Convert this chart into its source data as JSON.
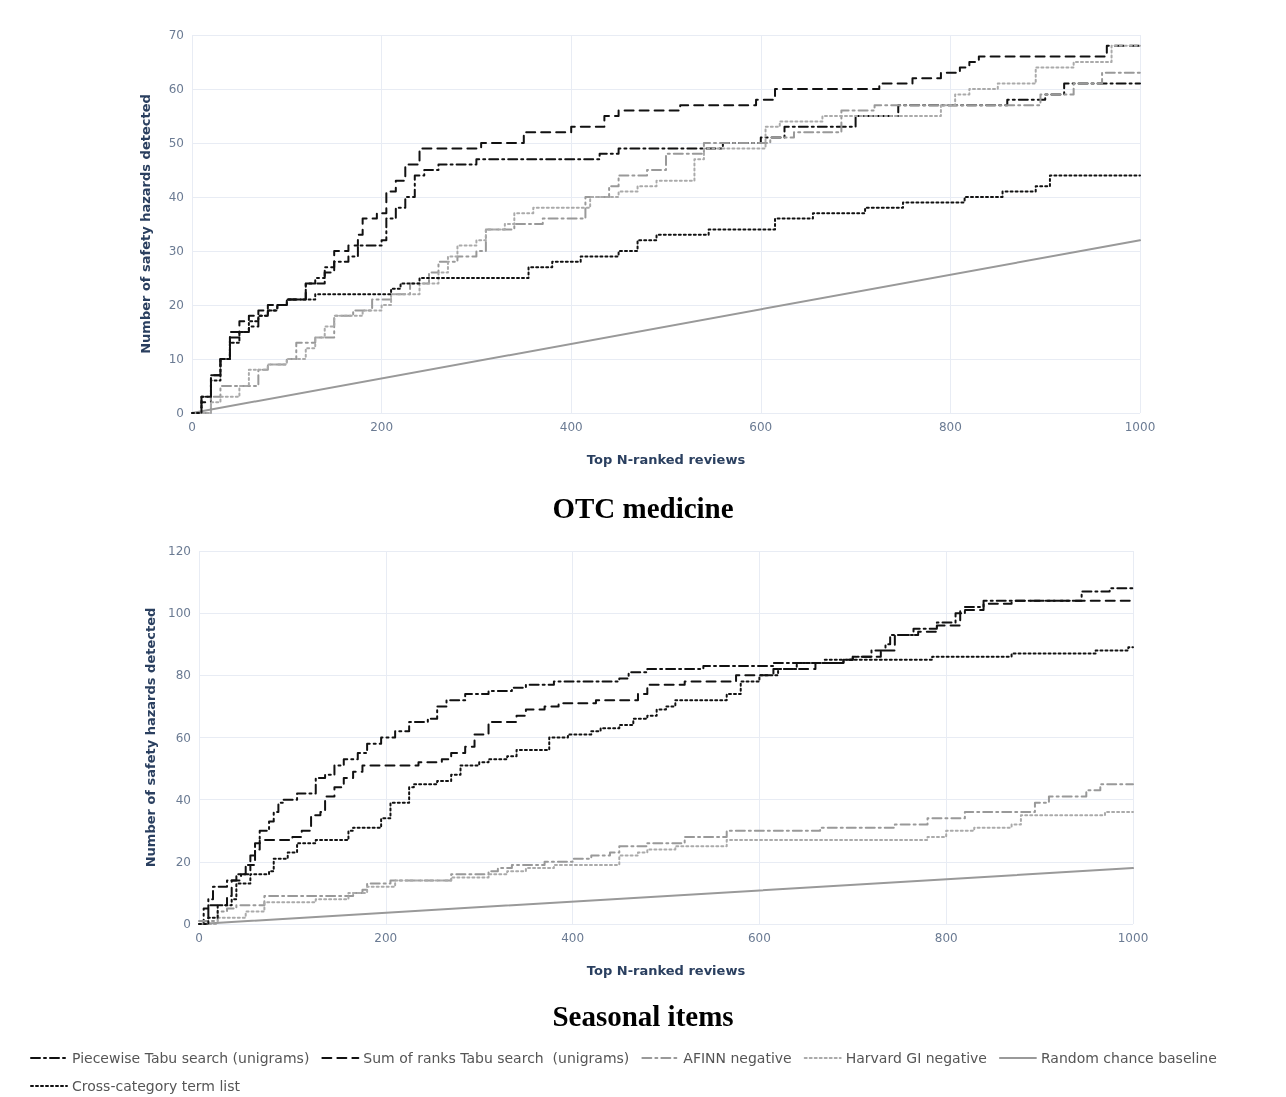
{
  "chart_data": [
    {
      "type": "step",
      "title": "OTC medicine",
      "xlabel": "Top N-ranked reviews",
      "ylabel": "Number of safety hazards detected",
      "xlim": [
        0,
        1000
      ],
      "xticks": [
        0,
        200,
        400,
        600,
        800,
        1000
      ],
      "ylim": [
        0,
        70
      ],
      "yticks": [
        0,
        10,
        20,
        30,
        40,
        50,
        60,
        70
      ],
      "grid": true,
      "legend": false,
      "marker": "none",
      "series": [
        {
          "color": "#111111",
          "line_style": "dashdot",
          "x": [
            0,
            10,
            20,
            30,
            40,
            50,
            60,
            70,
            80,
            90,
            100,
            120,
            130,
            140,
            150,
            165,
            175,
            200,
            205,
            215,
            225,
            235,
            245,
            260,
            300,
            430,
            450,
            560,
            600,
            625,
            700,
            745,
            860,
            900,
            920,
            1000
          ],
          "values": [
            0,
            3,
            7,
            10,
            14,
            15,
            16,
            18,
            19,
            20,
            21,
            24,
            25,
            27,
            28,
            29,
            31,
            32,
            36,
            38,
            40,
            44,
            45,
            46,
            47,
            48,
            49,
            50,
            51,
            53,
            55,
            57,
            58,
            59,
            61,
            61
          ]
        },
        {
          "color": "#111111",
          "line_style": "dashed",
          "x": [
            0,
            10,
            20,
            30,
            40,
            50,
            60,
            70,
            80,
            100,
            120,
            140,
            150,
            165,
            175,
            180,
            195,
            205,
            215,
            225,
            240,
            305,
            350,
            400,
            435,
            450,
            515,
            595,
            615,
            725,
            760,
            790,
            810,
            820,
            830,
            965,
            1000
          ],
          "values": [
            0,
            2,
            7,
            10,
            15,
            17,
            18,
            19,
            20,
            21,
            24,
            26,
            30,
            31,
            33,
            36,
            37,
            41,
            43,
            46,
            49,
            50,
            52,
            53,
            55,
            56,
            57,
            58,
            60,
            61,
            62,
            63,
            64,
            65,
            66,
            68,
            68
          ]
        },
        {
          "color": "#999999",
          "line_style": "dashdot",
          "x": [
            0,
            20,
            30,
            70,
            80,
            100,
            110,
            130,
            150,
            170,
            190,
            210,
            230,
            250,
            260,
            280,
            300,
            310,
            340,
            370,
            415,
            440,
            450,
            480,
            500,
            540,
            610,
            635,
            685,
            720,
            895,
            930,
            960,
            1000
          ],
          "values": [
            0,
            3,
            5,
            8,
            9,
            10,
            13,
            14,
            18,
            19,
            21,
            22,
            24,
            26,
            28,
            29,
            30,
            34,
            35,
            36,
            40,
            42,
            44,
            45,
            48,
            50,
            51,
            52,
            56,
            57,
            59,
            61,
            63,
            63
          ]
        },
        {
          "color": "#aaaaaa",
          "line_style": "dotted",
          "x": [
            0,
            20,
            30,
            50,
            60,
            80,
            100,
            120,
            130,
            140,
            150,
            180,
            200,
            210,
            240,
            260,
            270,
            280,
            300,
            310,
            330,
            340,
            360,
            420,
            450,
            470,
            490,
            530,
            540,
            605,
            620,
            665,
            790,
            805,
            820,
            850,
            890,
            930,
            970,
            1000
          ],
          "values": [
            0,
            2,
            3,
            5,
            8,
            9,
            10,
            12,
            14,
            16,
            18,
            19,
            20,
            22,
            24,
            26,
            29,
            31,
            32,
            34,
            35,
            37,
            38,
            40,
            41,
            42,
            43,
            47,
            49,
            53,
            54,
            55,
            57,
            59,
            60,
            61,
            64,
            65,
            68,
            68
          ]
        },
        {
          "type": "line",
          "color": "#999999",
          "line_style": "solid",
          "x": [
            0,
            1000
          ],
          "values": [
            0,
            32
          ]
        },
        {
          "color": "#111111",
          "line_style": "dotted",
          "x": [
            0,
            10,
            20,
            30,
            40,
            50,
            60,
            70,
            80,
            90,
            100,
            130,
            210,
            220,
            240,
            355,
            380,
            410,
            450,
            470,
            490,
            545,
            615,
            655,
            710,
            750,
            815,
            855,
            890,
            905,
            1000
          ],
          "values": [
            0,
            3,
            6,
            10,
            13,
            15,
            17,
            18,
            19,
            20,
            21,
            22,
            23,
            24,
            25,
            27,
            28,
            29,
            30,
            32,
            33,
            34,
            36,
            37,
            38,
            39,
            40,
            41,
            42,
            44,
            44
          ]
        }
      ]
    },
    {
      "type": "step",
      "title": "Seasonal items",
      "xlabel": "Top N-ranked reviews",
      "ylabel": "Number of safety hazards detected",
      "xlim": [
        0,
        1000
      ],
      "xticks": [
        0,
        200,
        400,
        600,
        800,
        1000
      ],
      "ylim": [
        0,
        120
      ],
      "yticks": [
        0,
        20,
        40,
        60,
        80,
        100,
        120
      ],
      "grid": true,
      "legend": "bottom",
      "marker": "none",
      "series": [
        {
          "name": "Piecewise Tabu search (unigrams)",
          "color": "#111111",
          "line_style": "dashdot",
          "x": [
            0,
            5,
            10,
            15,
            30,
            40,
            50,
            55,
            60,
            65,
            75,
            80,
            85,
            90,
            105,
            125,
            135,
            145,
            155,
            170,
            180,
            195,
            210,
            225,
            245,
            255,
            265,
            285,
            310,
            335,
            350,
            380,
            450,
            460,
            480,
            540,
            615,
            690,
            700,
            720,
            735,
            740,
            765,
            790,
            810,
            820,
            840,
            945,
            975,
            1000
          ],
          "values": [
            0,
            5,
            8,
            12,
            14,
            16,
            19,
            22,
            26,
            30,
            33,
            36,
            39,
            40,
            42,
            47,
            48,
            51,
            53,
            55,
            58,
            60,
            62,
            65,
            66,
            70,
            72,
            74,
            75,
            76,
            77,
            78,
            79,
            81,
            82,
            83,
            84,
            85,
            86,
            88,
            90,
            93,
            95,
            97,
            100,
            102,
            104,
            107,
            108,
            108
          ]
        },
        {
          "name": "Sum of ranks Tabu search  (unigrams)",
          "color": "#111111",
          "line_style": "dashed",
          "x": [
            0,
            10,
            30,
            35,
            45,
            55,
            60,
            65,
            100,
            110,
            120,
            130,
            135,
            145,
            155,
            165,
            175,
            235,
            260,
            270,
            285,
            295,
            310,
            340,
            350,
            370,
            385,
            425,
            470,
            480,
            520,
            575,
            615,
            660,
            690,
            700,
            730,
            745,
            770,
            790,
            815,
            840,
            870,
            1000
          ],
          "values": [
            0,
            6,
            9,
            14,
            16,
            19,
            24,
            27,
            28,
            30,
            35,
            36,
            41,
            44,
            47,
            49,
            51,
            52,
            53,
            55,
            57,
            61,
            65,
            67,
            69,
            70,
            71,
            72,
            74,
            77,
            78,
            80,
            82,
            84,
            85,
            86,
            88,
            93,
            94,
            96,
            101,
            103,
            104,
            104
          ]
        },
        {
          "name": "AFINN negative",
          "color": "#999999",
          "line_style": "dashdot",
          "x": [
            0,
            20,
            30,
            40,
            70,
            165,
            175,
            180,
            205,
            270,
            310,
            320,
            335,
            370,
            400,
            420,
            440,
            450,
            480,
            520,
            565,
            665,
            745,
            780,
            820,
            895,
            910,
            950,
            965,
            1000
          ],
          "values": [
            1,
            4,
            5,
            6,
            9,
            10,
            11,
            13,
            14,
            16,
            17,
            18,
            19,
            20,
            21,
            22,
            23,
            25,
            26,
            28,
            30,
            31,
            32,
            34,
            36,
            39,
            41,
            43,
            45,
            45
          ]
        },
        {
          "name": "Harvard GI negative",
          "color": "#aaaaaa",
          "line_style": "dotted",
          "x": [
            0,
            20,
            50,
            70,
            125,
            160,
            180,
            210,
            270,
            310,
            330,
            350,
            380,
            450,
            470,
            480,
            510,
            565,
            780,
            800,
            830,
            870,
            880,
            970,
            1000
          ],
          "values": [
            0,
            2,
            4,
            7,
            8,
            10,
            12,
            14,
            15,
            16,
            17,
            18,
            19,
            22,
            23,
            24,
            25,
            27,
            28,
            30,
            31,
            32,
            35,
            36,
            36
          ]
        },
        {
          "name": "Random chance baseline",
          "type": "line",
          "color": "#999999",
          "line_style": "solid",
          "x": [
            0,
            1000
          ],
          "values": [
            0,
            18
          ]
        },
        {
          "name": "Cross-category term list",
          "color": "#111111",
          "line_style": "dotted",
          "x": [
            0,
            10,
            20,
            35,
            40,
            55,
            75,
            80,
            95,
            105,
            125,
            160,
            165,
            195,
            205,
            225,
            230,
            255,
            270,
            280,
            300,
            310,
            330,
            340,
            375,
            395,
            420,
            430,
            450,
            465,
            480,
            490,
            500,
            510,
            565,
            580,
            600,
            620,
            640,
            670,
            785,
            870,
            960,
            995,
            1000
          ],
          "values": [
            0,
            2,
            6,
            8,
            13,
            16,
            17,
            21,
            23,
            26,
            27,
            30,
            31,
            34,
            39,
            44,
            45,
            46,
            48,
            51,
            52,
            53,
            54,
            56,
            60,
            61,
            62,
            63,
            64,
            66,
            67,
            69,
            70,
            72,
            74,
            78,
            80,
            82,
            84,
            85,
            86,
            87,
            88,
            89,
            89
          ]
        }
      ]
    }
  ]
}
